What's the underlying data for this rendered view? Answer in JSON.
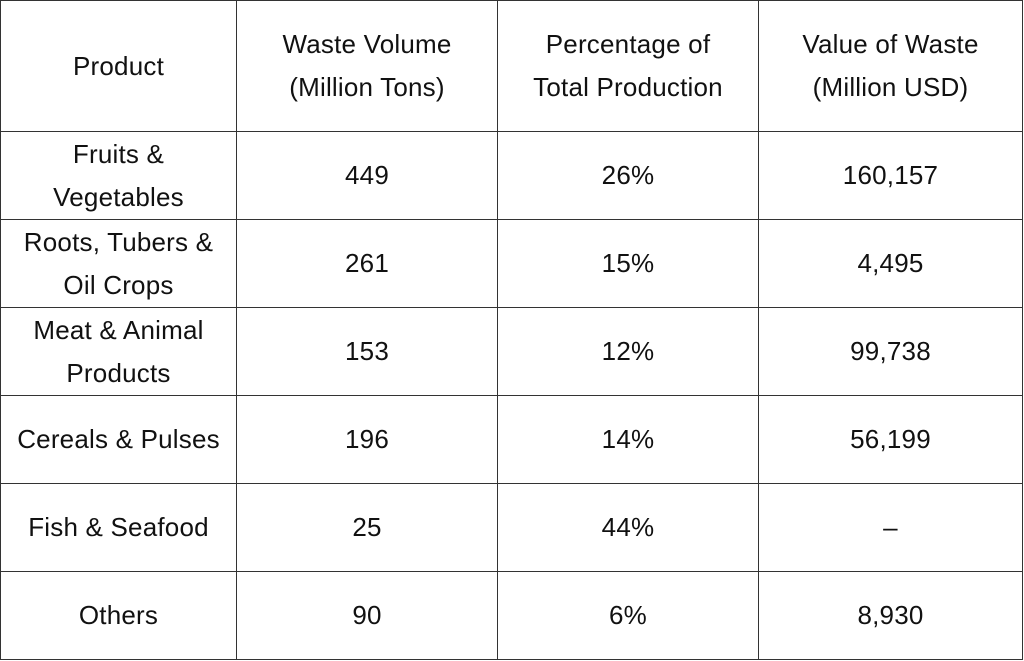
{
  "chart_data": {
    "type": "table",
    "columns": [
      "Product",
      "Waste Volume\n(Million Tons)",
      "Percentage of\nTotal Production",
      "Value of Waste\n(Million USD)"
    ],
    "rows": [
      [
        "Fruits &\nVegetables",
        "449",
        "26%",
        "160,157"
      ],
      [
        "Roots, Tubers &\nOil Crops",
        "261",
        "15%",
        "4,495"
      ],
      [
        "Meat & Animal\nProducts",
        "153",
        "12%",
        "99,738"
      ],
      [
        "Cereals & Pulses",
        "196",
        "14%",
        "56,199"
      ],
      [
        "Fish & Seafood",
        "25",
        "44%",
        "–"
      ],
      [
        "Others",
        "90",
        "6%",
        "8,930"
      ]
    ]
  }
}
